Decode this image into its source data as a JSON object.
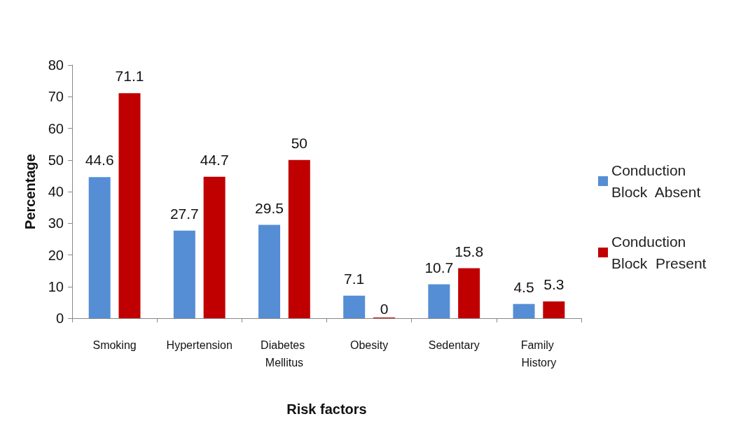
{
  "chart_data": {
    "type": "bar",
    "xlabel": "Risk factors",
    "ylabel": "Percentage",
    "categories": [
      "Smoking",
      "Hypertension",
      "Diabetes Mellitus",
      "Obesity",
      "Sedentary",
      "Family History"
    ],
    "series": [
      {
        "name": "Conduction Block  Absent",
        "color": "#558ed5",
        "values": [
          44.6,
          27.7,
          29.5,
          7.1,
          10.7,
          4.5
        ]
      },
      {
        "name": "Conduction Block  Present",
        "color": "#c00000",
        "values": [
          71.1,
          44.7,
          50,
          0,
          15.8,
          5.3
        ]
      }
    ],
    "ylim": [
      0,
      80
    ],
    "yticks": [
      0,
      10,
      20,
      30,
      40,
      50,
      60,
      70,
      80
    ],
    "grid": false,
    "legend": "right",
    "data_labels": true
  }
}
